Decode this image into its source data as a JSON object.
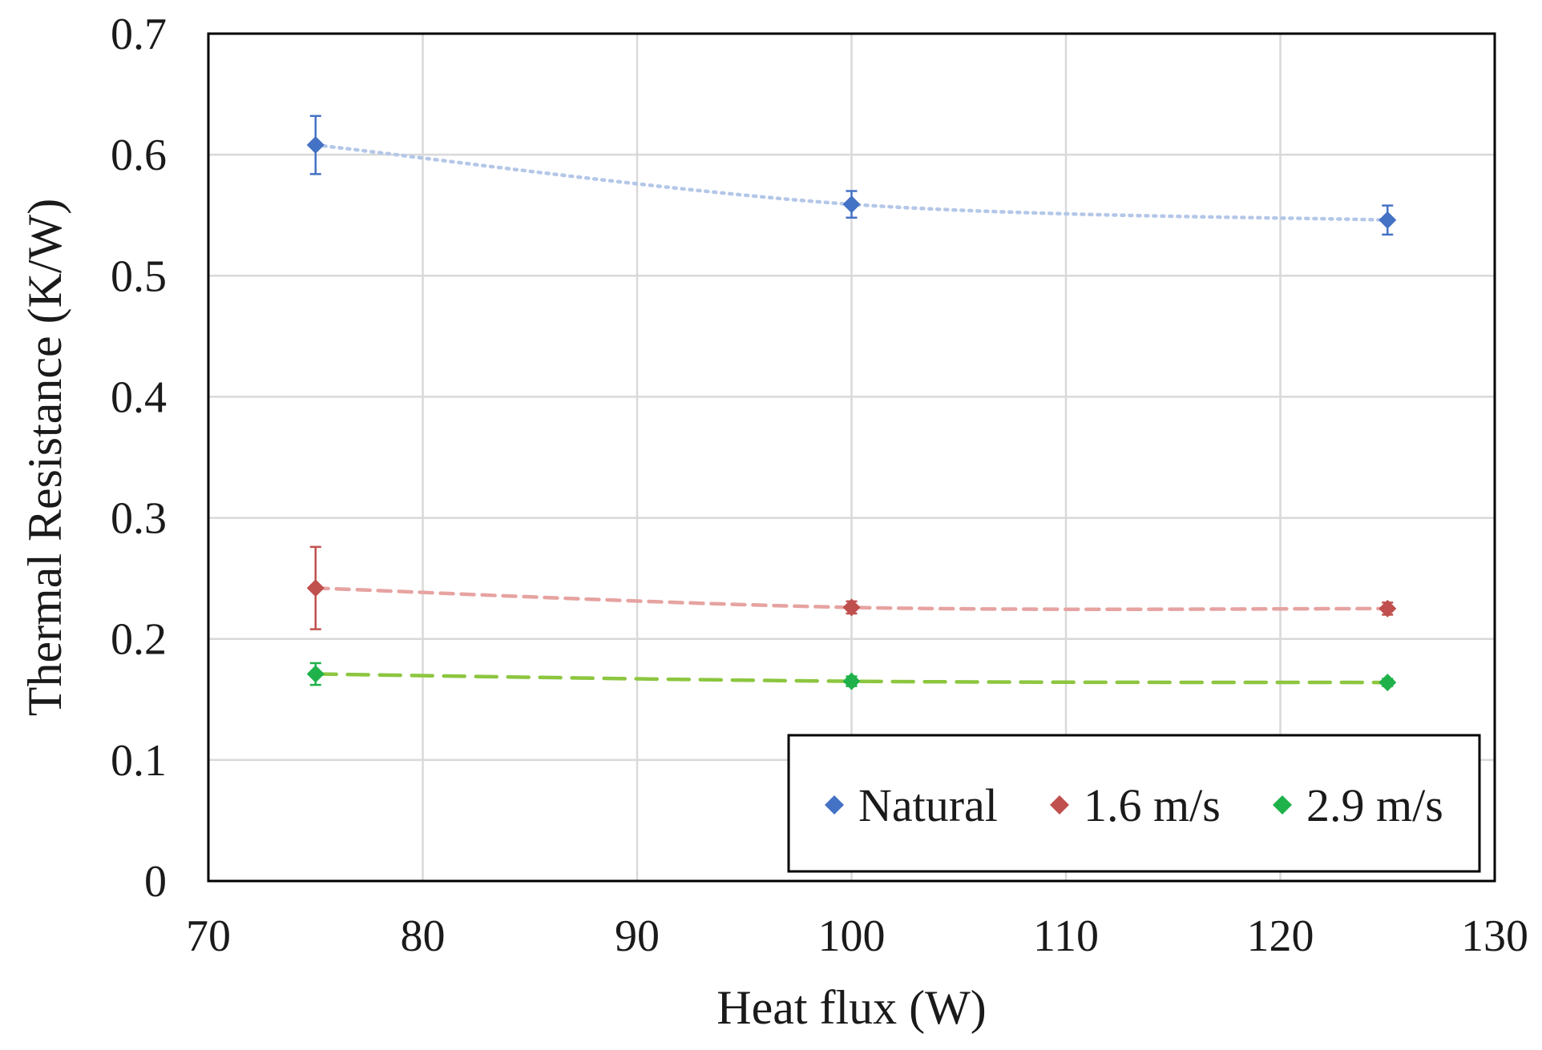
{
  "chart_data": {
    "type": "scatter",
    "title": "",
    "xlabel": "Heat flux (W)",
    "ylabel": "Thermal Resistance (K/W)",
    "xlim": [
      70,
      130
    ],
    "ylim": [
      0,
      0.7
    ],
    "xticks": [
      70,
      80,
      90,
      100,
      110,
      120,
      130
    ],
    "yticks": [
      0,
      0.1,
      0.2,
      0.3,
      0.4,
      0.5,
      0.6,
      0.7
    ],
    "xtick_labels": [
      "70",
      "80",
      "90",
      "100",
      "110",
      "120",
      "130"
    ],
    "ytick_labels": [
      "0",
      "0.1",
      "0.2",
      "0.3",
      "0.4",
      "0.5",
      "0.6",
      "0.7"
    ],
    "grid": true,
    "legend_position": "bottom-right",
    "series": [
      {
        "name": "Natural",
        "color": "#4472C4",
        "trend_color": "#B4C7E7",
        "trend_style": "dotted",
        "x": [
          75,
          100,
          125
        ],
        "y": [
          0.608,
          0.559,
          0.546
        ],
        "err": [
          0.024,
          0.011,
          0.012
        ]
      },
      {
        "name": "1.6 m/s",
        "color": "#C0504D",
        "trend_color": "#E6A3A1",
        "trend_style": "dashed",
        "x": [
          75,
          100,
          125
        ],
        "y": [
          0.242,
          0.226,
          0.225
        ],
        "err": [
          0.034,
          0.005,
          0.005
        ]
      },
      {
        "name": "2.9 m/s",
        "color": "#1FB24A",
        "trend_color": "#8CC63F",
        "trend_style": "longdash",
        "x": [
          75,
          100,
          125
        ],
        "y": [
          0.171,
          0.165,
          0.164
        ],
        "err": [
          0.009,
          0.004,
          0.003
        ]
      }
    ]
  }
}
